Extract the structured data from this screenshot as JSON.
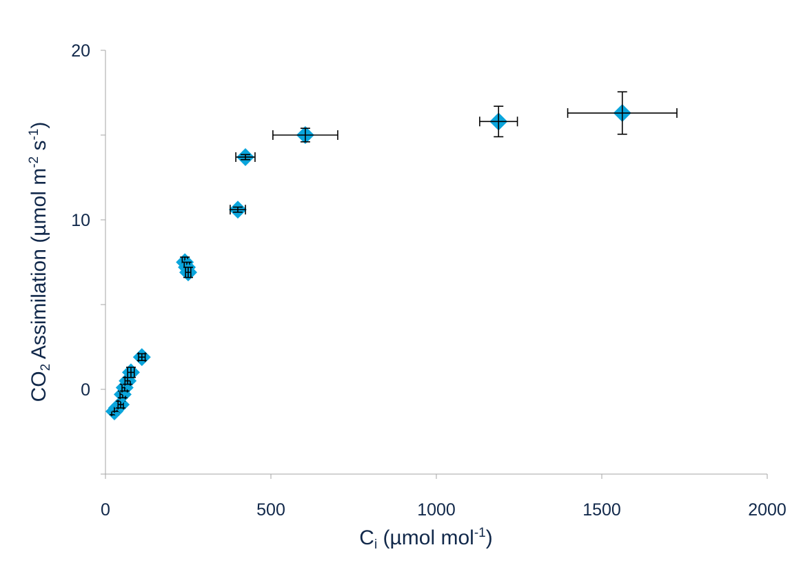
{
  "chart_data": {
    "type": "scatter",
    "title": "",
    "xlabel": {
      "main": "C",
      "sub": "i",
      "rest": " (µmol mol",
      "sup": "-1",
      "end": ")"
    },
    "ylabel": {
      "a": "CO",
      "sub": "2",
      "b": " Assimilation (µmol m",
      "sup1": "-2",
      "c": " s",
      "sup2": "-1",
      "d": ")"
    },
    "xlim": [
      0,
      2000
    ],
    "ylim": [
      -5,
      20
    ],
    "xticks": [
      0,
      500,
      1000,
      1500,
      2000
    ],
    "xtick_labels": [
      "0",
      "500",
      "1000",
      "1500",
      "2000"
    ],
    "yticks": [
      -5,
      0,
      5,
      10,
      15,
      20
    ],
    "ytick_labels": [
      "",
      "0",
      "",
      "10",
      "",
      "20"
    ],
    "grid": false,
    "marker": "diamond",
    "marker_color": "#0aa5dc",
    "errorbar_color": "#000000",
    "points": [
      {
        "x": 27,
        "y": -1.3,
        "xerr": 8,
        "yerr": 0.2
      },
      {
        "x": 35,
        "y": -1.1,
        "xerr": 8,
        "yerr": 0.2
      },
      {
        "x": 46,
        "y": -0.9,
        "xerr": 8,
        "yerr": 0.2
      },
      {
        "x": 52,
        "y": -0.3,
        "xerr": 8,
        "yerr": 0.2
      },
      {
        "x": 58,
        "y": 0.1,
        "xerr": 8,
        "yerr": 0.2
      },
      {
        "x": 67,
        "y": 0.5,
        "xerr": 8,
        "yerr": 0.2
      },
      {
        "x": 77,
        "y": 1.0,
        "xerr": 10,
        "yerr": 0.3
      },
      {
        "x": 110,
        "y": 1.9,
        "xerr": 10,
        "yerr": 0.2
      },
      {
        "x": 240,
        "y": 7.5,
        "xerr": 8,
        "yerr": 0.3
      },
      {
        "x": 246,
        "y": 7.2,
        "xerr": 8,
        "yerr": 0.3
      },
      {
        "x": 250,
        "y": 6.9,
        "xerr": 8,
        "yerr": 0.3
      },
      {
        "x": 400,
        "y": 10.6,
        "xerr": 23,
        "yerr": 0.15
      },
      {
        "x": 423,
        "y": 13.7,
        "xerr": 29,
        "yerr": 0.15
      },
      {
        "x": 604,
        "y": 15.0,
        "xerr": 98,
        "yerr": 0.4
      },
      {
        "x": 1188,
        "y": 15.8,
        "xerr": 57,
        "yerr": 0.9
      },
      {
        "x": 1562,
        "y": 16.3,
        "xerr": 165,
        "yerr": 1.25
      }
    ]
  }
}
